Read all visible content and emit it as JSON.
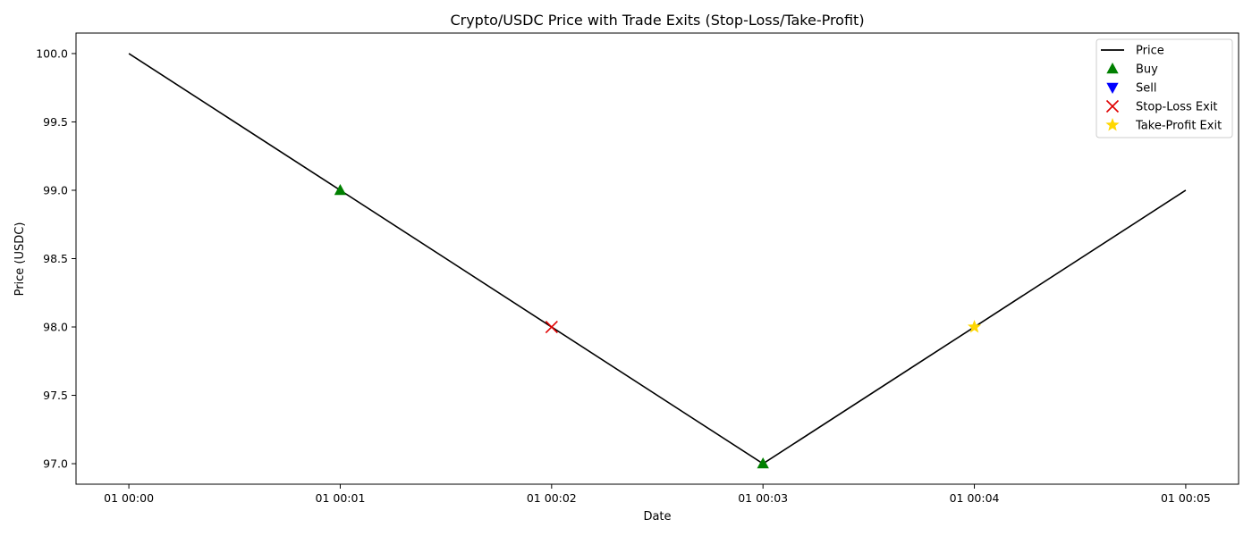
{
  "chart_data": {
    "type": "line",
    "title": "Crypto/USDC Price with Trade Exits (Stop-Loss/Take-Profit)",
    "xlabel": "Date",
    "ylabel": "Price (USDC)",
    "x": [
      "01 00:00",
      "01 00:01",
      "01 00:02",
      "01 00:03",
      "01 00:04",
      "01 00:05"
    ],
    "xlim": [
      -0.25,
      5.25
    ],
    "ylim": [
      96.85,
      100.15
    ],
    "yticks": [
      97.0,
      97.5,
      98.0,
      98.5,
      99.0,
      99.5,
      100.0
    ],
    "grid": false,
    "legend_position": "top-right",
    "series": [
      {
        "name": "Price",
        "marker": "line",
        "color": "#000000",
        "points": [
          [
            0,
            100.0
          ],
          [
            1,
            99.0
          ],
          [
            2,
            98.0
          ],
          [
            3,
            97.0
          ],
          [
            4,
            98.0
          ],
          [
            5,
            99.0
          ]
        ]
      },
      {
        "name": "Buy",
        "marker": "triangle-up",
        "color": "#008000",
        "points": [
          [
            1,
            99.0
          ],
          [
            3,
            97.0
          ]
        ]
      },
      {
        "name": "Sell",
        "marker": "triangle-down",
        "color": "#0000ff",
        "points": []
      },
      {
        "name": "Stop-Loss Exit",
        "marker": "x",
        "color": "#e00000",
        "points": [
          [
            2,
            98.0
          ]
        ]
      },
      {
        "name": "Take-Profit Exit",
        "marker": "star",
        "color": "#ffd700",
        "points": [
          [
            4,
            98.0
          ]
        ]
      }
    ]
  }
}
